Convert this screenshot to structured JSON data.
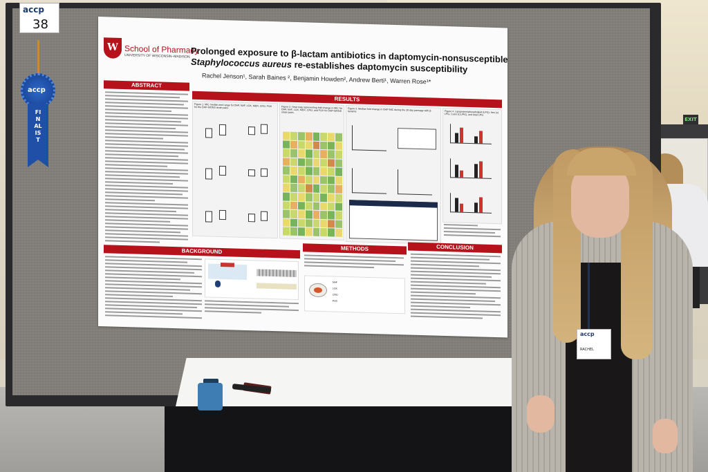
{
  "number_card": {
    "logo": "accp",
    "number": "38"
  },
  "ribbon": {
    "rosette": "accp",
    "tail": "FINALIST"
  },
  "exit_sign": "EXIT",
  "badge": {
    "logo": "accp",
    "name": "RACHEL"
  },
  "poster": {
    "school": "School of Pharmacy",
    "university": "UNIVERSITY OF WISCONSIN–MADISON",
    "title_line1": "Prolonged exposure to β-lactam antibiotics in daptomycin-nonsusceptible",
    "title_line2_italic": "Staphylococcus aureus",
    "title_line2_rest": " re-establishes daptomycin susceptibility",
    "authors": "Rachel Jenson¹, Sarah Baines ², Benjamin Howden², Andrew Berti¹, Warren Rose¹*",
    "sections": {
      "abstract": "ABSTRACT",
      "results": "RESULTS",
      "background": "BACKGROUND",
      "methods": "METHODS",
      "conclusion": "CONCLUSION"
    },
    "figures": {
      "fig1": "Figure 1. MIC median and range for DAP, NAF, LOX, MER, CRO, FOX for the DAP-S/DNS strain pairs",
      "fig2": "Figure 2. Heat map representing fold-change in MIC for DAP, NAF, LOX, MER, CRO, and FOX for DAP-S/DNS strain pairs.",
      "fig3": "Figure 3. Median fold change in DAP MIC during the 28 day passage with β-lactams",
      "fig4": "Figure 4. Lipoprotein/phospholipid (LPG), free (x) LPG, Cutor (CL/PG), and total LPG"
    },
    "methods_labels": [
      "NAF",
      "LOX",
      "CRO",
      "FOX"
    ]
  },
  "colors": {
    "poster_red": "#b5121b",
    "board_gray": "#807d78",
    "ribbon_blue": "#1f4fa6"
  }
}
